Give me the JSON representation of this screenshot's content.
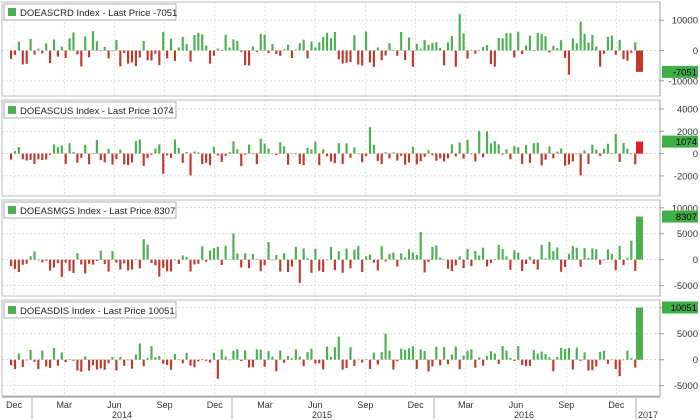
{
  "chart_data": [
    {
      "type": "bar",
      "legend": "DOEASCRD Index - Last Price -7051",
      "last_value_label": "-7051",
      "last_value": -7051,
      "ylim": [
        -15000,
        16000
      ],
      "yticks": [
        10000,
        0,
        -10000
      ],
      "ytick_labels": [
        "10000",
        "0",
        "-10000"
      ],
      "grid": true,
      "seed": 11,
      "scale": 6000,
      "values_note": "weekly change, Dec 2013 - Jan 2017"
    },
    {
      "type": "bar",
      "legend": "DOEASCUS Index - Last Price 1074",
      "last_value_label": "1074",
      "last_value": 1074,
      "ylim": [
        -3800,
        4800
      ],
      "yticks": [
        4000,
        2000,
        0,
        -2000
      ],
      "ytick_labels": [
        "4000",
        "2000",
        "0",
        "-2000"
      ],
      "grid": true,
      "seed": 23,
      "scale": 1200,
      "values_note": "weekly change, Dec 2013 - Jan 2017"
    },
    {
      "type": "bar",
      "legend": "DOEASMGS Index - Last Price 8307",
      "last_value_label": "8307",
      "last_value": 8307,
      "ylim": [
        -7000,
        11500
      ],
      "yticks": [
        10000,
        5000,
        0,
        -5000
      ],
      "ytick_labels": [
        "10000",
        "5000",
        "0",
        "-5000"
      ],
      "grid": true,
      "seed": 37,
      "scale": 2800,
      "values_note": "weekly change, Dec 2013 - Jan 2017"
    },
    {
      "type": "bar",
      "legend": "DOEASDIS Index - Last Price 10051",
      "last_value_label": "10051",
      "last_value": 10051,
      "ylim": [
        -7000,
        11500
      ],
      "yticks": [
        10000,
        5000,
        0,
        -5000
      ],
      "ytick_labels": [
        "10000",
        "5000",
        "0",
        "-5000"
      ],
      "grid": true,
      "seed": 53,
      "scale": 2500,
      "values_note": "weekly change, Dec 2013 - Jan 2017"
    }
  ],
  "x_axis": {
    "month_labels": [
      "Dec",
      "Mar",
      "Jun",
      "Sep",
      "Dec",
      "Mar",
      "Jun",
      "Sep",
      "Dec",
      "Mar",
      "Jun",
      "Sep",
      "Dec"
    ],
    "year_labels": [
      "2014",
      "2015",
      "2016",
      "2017"
    ]
  },
  "colors": {
    "up": "#4caf50",
    "down": "#c0392b",
    "grid": "#cfcfcf",
    "panel_border": "#888888",
    "legend_box": "#4caf50",
    "label_up": "#3fae49",
    "label_down": "#3fae49",
    "marker_red": "#e02020"
  }
}
